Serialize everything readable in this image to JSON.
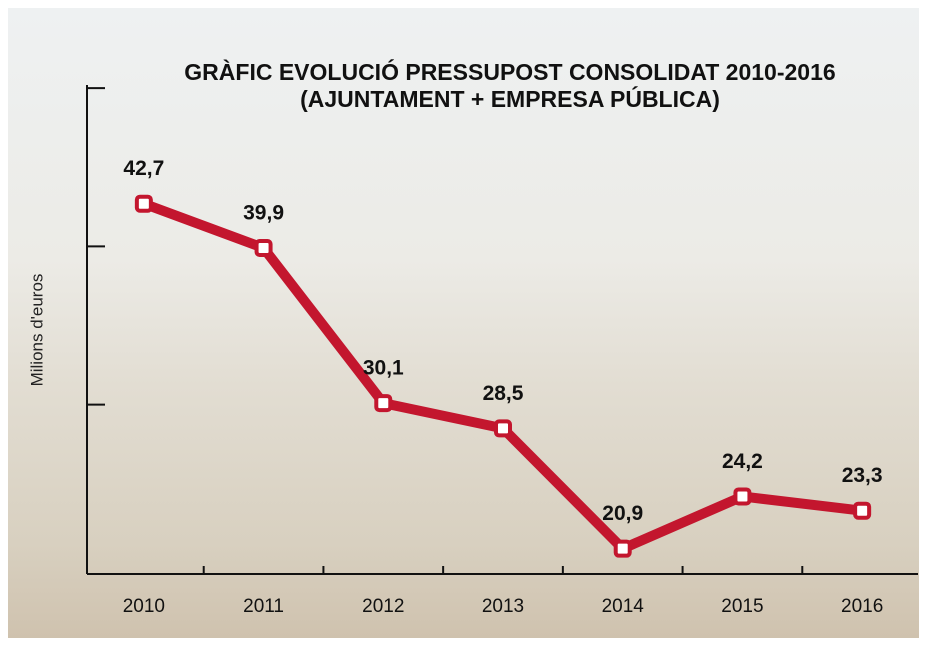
{
  "chart_data": {
    "type": "line",
    "title": "GRÀFIC EVOLUCIÓ PRESSUPOST CONSOLIDAT 2010-2016",
    "subtitle": "(AJUNTAMENT + EMPRESA PÚBLICA)",
    "y_label": "Milions d'euros",
    "categories": [
      "2010",
      "2011",
      "2012",
      "2013",
      "2014",
      "2015",
      "2016"
    ],
    "values": [
      42.7,
      39.9,
      30.1,
      28.5,
      20.9,
      24.2,
      23.3
    ],
    "value_labels": [
      "42,7",
      "39,9",
      "30,1",
      "28,5",
      "20,9",
      "24,2",
      "23,3"
    ],
    "color": "#c3162e",
    "ylim": [
      19.3,
      50.2
    ],
    "yticks": [
      30,
      40,
      50
    ]
  }
}
